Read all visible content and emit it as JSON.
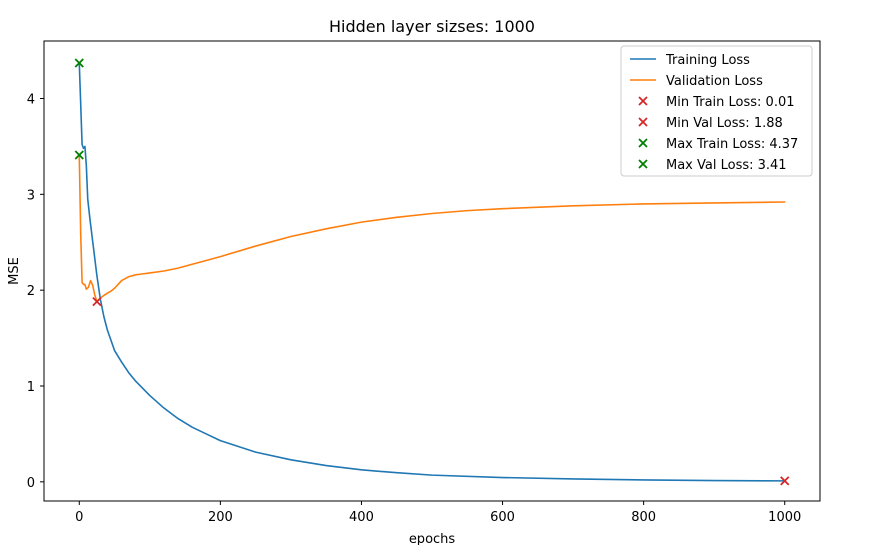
{
  "chart_data": {
    "type": "line",
    "title": "Hidden layer sizses: 1000",
    "xlabel": "epochs",
    "ylabel": "MSE",
    "xlim": [
      -50,
      1050
    ],
    "ylim": [
      -0.2,
      4.6
    ],
    "xticks": [
      0,
      200,
      400,
      600,
      800,
      1000
    ],
    "yticks": [
      0,
      1,
      2,
      3,
      4
    ],
    "grid": false,
    "legend_position": "upper-right",
    "series": [
      {
        "name": "Training Loss",
        "color": "#1f77b4",
        "points": [
          [
            0,
            4.37
          ],
          [
            2,
            3.95
          ],
          [
            4,
            3.52
          ],
          [
            6,
            3.48
          ],
          [
            8,
            3.5
          ],
          [
            10,
            3.3
          ],
          [
            12,
            2.95
          ],
          [
            15,
            2.75
          ],
          [
            20,
            2.45
          ],
          [
            25,
            2.15
          ],
          [
            30,
            1.9
          ],
          [
            35,
            1.72
          ],
          [
            40,
            1.58
          ],
          [
            50,
            1.37
          ],
          [
            60,
            1.25
          ],
          [
            70,
            1.14
          ],
          [
            80,
            1.05
          ],
          [
            100,
            0.9
          ],
          [
            120,
            0.77
          ],
          [
            140,
            0.66
          ],
          [
            160,
            0.57
          ],
          [
            180,
            0.5
          ],
          [
            200,
            0.43
          ],
          [
            250,
            0.31
          ],
          [
            300,
            0.23
          ],
          [
            350,
            0.17
          ],
          [
            400,
            0.125
          ],
          [
            450,
            0.095
          ],
          [
            500,
            0.07
          ],
          [
            600,
            0.045
          ],
          [
            700,
            0.03
          ],
          [
            800,
            0.02
          ],
          [
            900,
            0.013
          ],
          [
            1000,
            0.01
          ]
        ]
      },
      {
        "name": "Validation Loss",
        "color": "#ff7f0e",
        "points": [
          [
            0,
            3.41
          ],
          [
            2,
            2.6
          ],
          [
            4,
            2.08
          ],
          [
            6,
            2.06
          ],
          [
            8,
            2.06
          ],
          [
            10,
            2.01
          ],
          [
            13,
            2.03
          ],
          [
            16,
            2.1
          ],
          [
            19,
            2.05
          ],
          [
            22,
            1.95
          ],
          [
            25,
            1.88
          ],
          [
            28,
            1.9
          ],
          [
            32,
            1.93
          ],
          [
            36,
            1.95
          ],
          [
            40,
            1.97
          ],
          [
            45,
            1.99
          ],
          [
            50,
            2.02
          ],
          [
            55,
            2.06
          ],
          [
            60,
            2.1
          ],
          [
            65,
            2.12
          ],
          [
            70,
            2.14
          ],
          [
            80,
            2.16
          ],
          [
            90,
            2.17
          ],
          [
            100,
            2.18
          ],
          [
            120,
            2.2
          ],
          [
            140,
            2.23
          ],
          [
            160,
            2.27
          ],
          [
            180,
            2.31
          ],
          [
            200,
            2.35
          ],
          [
            250,
            2.46
          ],
          [
            300,
            2.56
          ],
          [
            350,
            2.64
          ],
          [
            400,
            2.71
          ],
          [
            450,
            2.76
          ],
          [
            500,
            2.8
          ],
          [
            550,
            2.83
          ],
          [
            600,
            2.85
          ],
          [
            700,
            2.88
          ],
          [
            800,
            2.9
          ],
          [
            900,
            2.91
          ],
          [
            1000,
            2.92
          ]
        ]
      }
    ],
    "markers": [
      {
        "label": "Min Train Loss: 0.01",
        "x": 1000,
        "y": 0.01,
        "color": "#d62728",
        "symbol": "x"
      },
      {
        "label": "Min Val Loss: 1.88",
        "x": 25,
        "y": 1.88,
        "color": "#d62728",
        "symbol": "x"
      },
      {
        "label": "Max Train Loss: 4.37",
        "x": 0,
        "y": 4.37,
        "color": "#008000",
        "symbol": "x"
      },
      {
        "label": "Max Val Loss: 3.41",
        "x": 0,
        "y": 3.41,
        "color": "#008000",
        "symbol": "x"
      }
    ]
  }
}
